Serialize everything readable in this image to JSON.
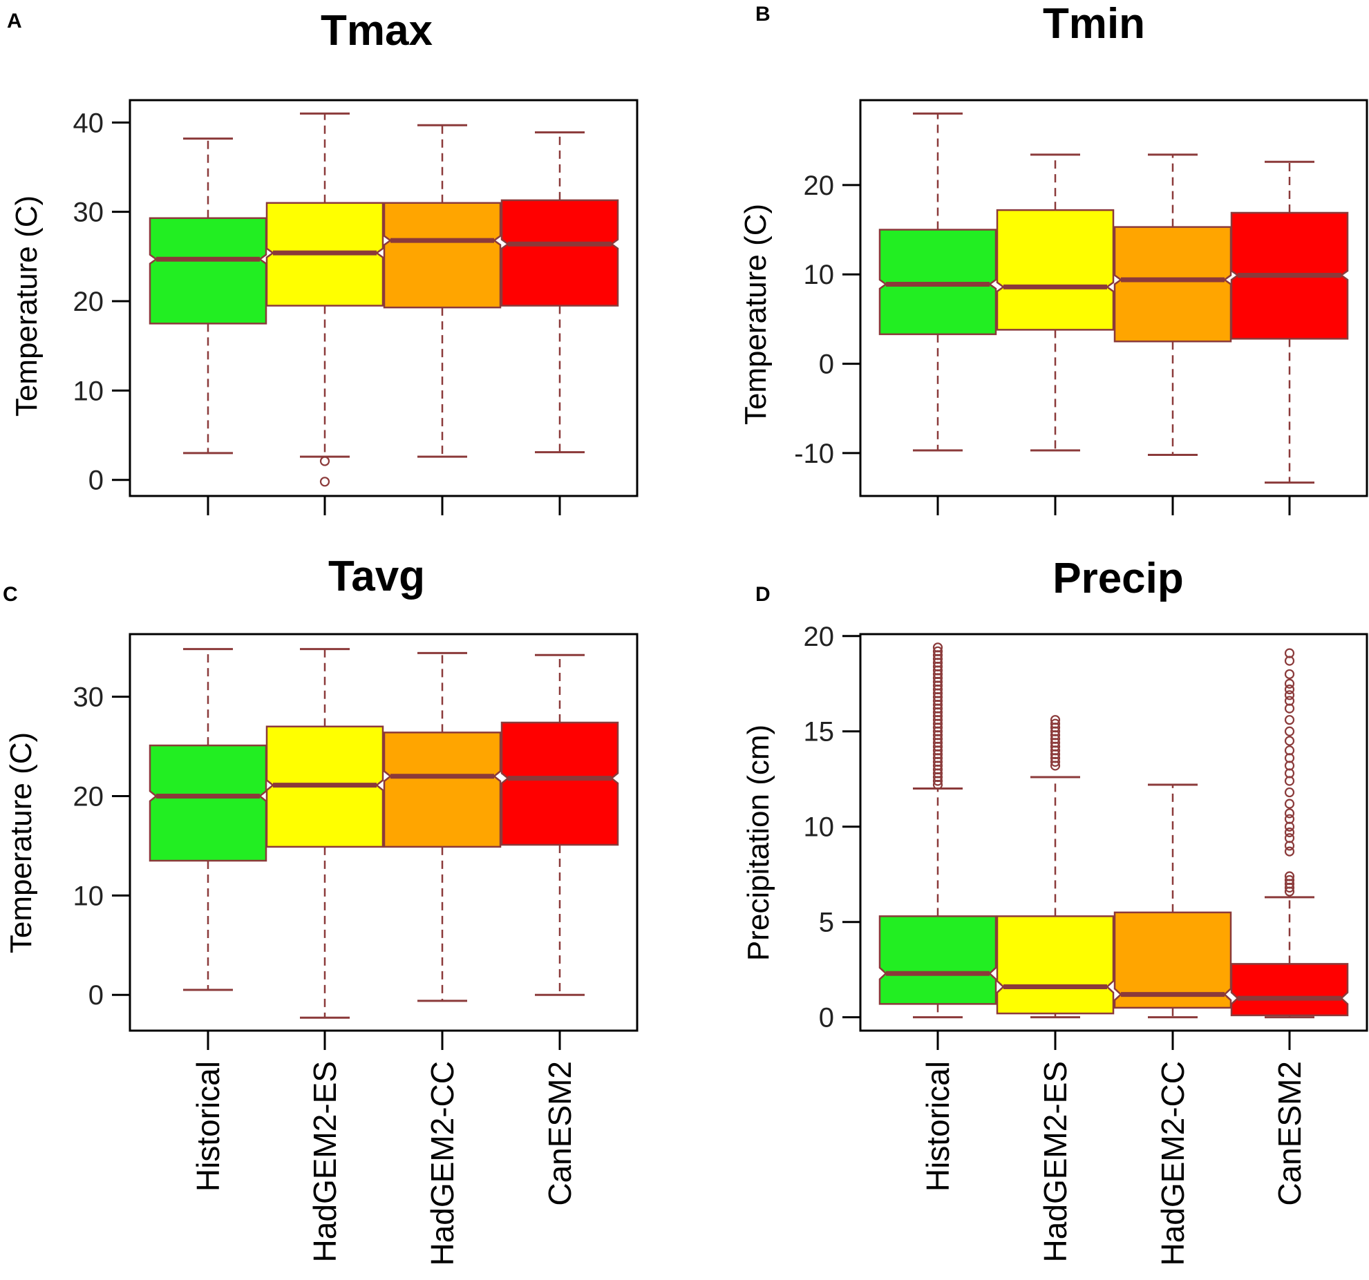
{
  "palette": {
    "Historical": "#22ee22",
    "HadGEM2-ES": "#ffff00",
    "HadGEM2-CC": "#ffa500",
    "CanESM2": "#ff0000",
    "line": "#8b3a3a",
    "frame": "#000000"
  },
  "chart_data": [
    {
      "type": "boxplot",
      "panel": "A",
      "title": "Tmax",
      "ylabel": "Temperature (C)",
      "xlabel": "",
      "ylim": [
        -1.8,
        42.5
      ],
      "yticks": [
        0,
        10,
        20,
        30,
        40
      ],
      "categories": [
        "Historical",
        "HadGEM2-ES",
        "HadGEM2-CC",
        "CanESM2"
      ],
      "boxes": [
        {
          "name": "Historical",
          "whisker_low": 3,
          "q1": 17.5,
          "median": 24.7,
          "q3": 29.3,
          "whisker_high": 38.2,
          "notch": [
            24.2,
            25.2
          ],
          "outliers": []
        },
        {
          "name": "HadGEM2-ES",
          "whisker_low": 2.6,
          "q1": 19.5,
          "median": 25.4,
          "q3": 31,
          "whisker_high": 41,
          "notch": [
            24.9,
            25.9
          ],
          "outliers": [
            2.1,
            -0.2
          ]
        },
        {
          "name": "HadGEM2-CC",
          "whisker_low": 2.6,
          "q1": 19.3,
          "median": 26.8,
          "q3": 31,
          "whisker_high": 39.7,
          "notch": [
            26.3,
            27.3
          ],
          "outliers": []
        },
        {
          "name": "CanESM2",
          "whisker_low": 3.1,
          "q1": 19.5,
          "median": 26.4,
          "q3": 31.3,
          "whisker_high": 38.9,
          "notch": [
            25.9,
            26.9
          ],
          "outliers": []
        }
      ]
    },
    {
      "type": "boxplot",
      "panel": "B",
      "title": "Tmin",
      "ylabel": "Temperature (C)",
      "xlabel": "",
      "ylim": [
        -14.8,
        29.5
      ],
      "yticks": [
        -10,
        0,
        10,
        20
      ],
      "categories": [
        "Historical",
        "HadGEM2-ES",
        "HadGEM2-CC",
        "CanESM2"
      ],
      "boxes": [
        {
          "name": "Historical",
          "whisker_low": -9.7,
          "q1": 3.3,
          "median": 8.9,
          "q3": 15,
          "whisker_high": 28,
          "notch": [
            8.4,
            9.4
          ],
          "outliers": []
        },
        {
          "name": "HadGEM2-ES",
          "whisker_low": -9.7,
          "q1": 3.8,
          "median": 8.6,
          "q3": 17.2,
          "whisker_high": 23.4,
          "notch": [
            8.1,
            9.1
          ],
          "outliers": []
        },
        {
          "name": "HadGEM2-CC",
          "whisker_low": -10.2,
          "q1": 2.5,
          "median": 9.4,
          "q3": 15.3,
          "whisker_high": 23.4,
          "notch": [
            8.9,
            9.9
          ],
          "outliers": []
        },
        {
          "name": "CanESM2",
          "whisker_low": -13.3,
          "q1": 2.8,
          "median": 9.9,
          "q3": 16.9,
          "whisker_high": 22.6,
          "notch": [
            9.4,
            10.4
          ],
          "outliers": []
        }
      ]
    },
    {
      "type": "boxplot",
      "panel": "C",
      "title": "Tavg",
      "ylabel": "Temperature (C)",
      "xlabel": "",
      "ylim": [
        -3.6,
        36.3
      ],
      "yticks": [
        0,
        10,
        20,
        30
      ],
      "categories": [
        "Historical",
        "HadGEM2-ES",
        "HadGEM2-CC",
        "CanESM2"
      ],
      "boxes": [
        {
          "name": "Historical",
          "whisker_low": 0.5,
          "q1": 13.5,
          "median": 20,
          "q3": 25.1,
          "whisker_high": 34.8,
          "notch": [
            19.5,
            20.5
          ],
          "outliers": []
        },
        {
          "name": "HadGEM2-ES",
          "whisker_low": -2.3,
          "q1": 14.9,
          "median": 21.1,
          "q3": 27,
          "whisker_high": 34.8,
          "notch": [
            20.6,
            21.6
          ],
          "outliers": []
        },
        {
          "name": "HadGEM2-CC",
          "whisker_low": -0.6,
          "q1": 14.9,
          "median": 22,
          "q3": 26.4,
          "whisker_high": 34.4,
          "notch": [
            21.5,
            22.5
          ],
          "outliers": []
        },
        {
          "name": "CanESM2",
          "whisker_low": 0,
          "q1": 15.1,
          "median": 21.8,
          "q3": 27.4,
          "whisker_high": 34.2,
          "notch": [
            21.3,
            22.3
          ],
          "outliers": []
        }
      ]
    },
    {
      "type": "boxplot",
      "panel": "D",
      "title": "Precip",
      "ylabel": "Precipitation  (cm)",
      "xlabel": "",
      "ylim": [
        -0.7,
        20.1
      ],
      "yticks": [
        0,
        5,
        10,
        15,
        20
      ],
      "categories": [
        "Historical",
        "HadGEM2-ES",
        "HadGEM2-CC",
        "CanESM2"
      ],
      "boxes": [
        {
          "name": "Historical",
          "whisker_low": 0,
          "q1": 0.7,
          "median": 2.3,
          "q3": 5.3,
          "whisker_high": 12,
          "notch": [
            2,
            2.6
          ],
          "outliers": [
            12.2,
            12.4,
            12.6,
            12.8,
            13.0,
            13.2,
            13.4,
            13.6,
            13.8,
            14.0,
            14.2,
            14.4,
            14.6,
            14.8,
            15.0,
            15.2,
            15.4,
            15.6,
            15.8,
            16.0,
            16.2,
            16.4,
            16.6,
            16.8,
            17.0,
            17.2,
            17.4,
            17.6,
            17.8,
            18.0,
            18.2,
            18.4,
            18.6,
            18.8,
            19.0,
            19.2,
            19.4
          ]
        },
        {
          "name": "HadGEM2-ES",
          "whisker_low": 0,
          "q1": 0.2,
          "median": 1.6,
          "q3": 5.3,
          "whisker_high": 12.6,
          "notch": [
            1.3,
            1.9
          ],
          "outliers": [
            13.2,
            13.4,
            13.6,
            13.8,
            14.0,
            14.2,
            14.4,
            14.6,
            14.8,
            15.0,
            15.2,
            15.4,
            15.6
          ]
        },
        {
          "name": "HadGEM2-CC",
          "whisker_low": 0,
          "q1": 0.5,
          "median": 1.2,
          "q3": 5.5,
          "whisker_high": 12.2,
          "notch": [
            0.9,
            1.5
          ],
          "outliers": []
        },
        {
          "name": "CanESM2",
          "whisker_low": 0,
          "q1": 0.1,
          "median": 1,
          "q3": 2.8,
          "whisker_high": 6.3,
          "notch": [
            0.7,
            1.3
          ],
          "outliers": [
            6.6,
            6.8,
            7.0,
            7.2,
            7.4,
            8.7,
            9.0,
            9.4,
            9.7,
            10.0,
            10.4,
            10.7,
            11.2,
            11.8,
            12.4,
            12.8,
            13.2,
            13.6,
            14.0,
            14.5,
            15.0,
            15.6,
            16.2,
            16.6,
            16.9,
            17.2,
            17.5,
            18.0,
            18.7,
            19.1
          ]
        }
      ]
    }
  ]
}
